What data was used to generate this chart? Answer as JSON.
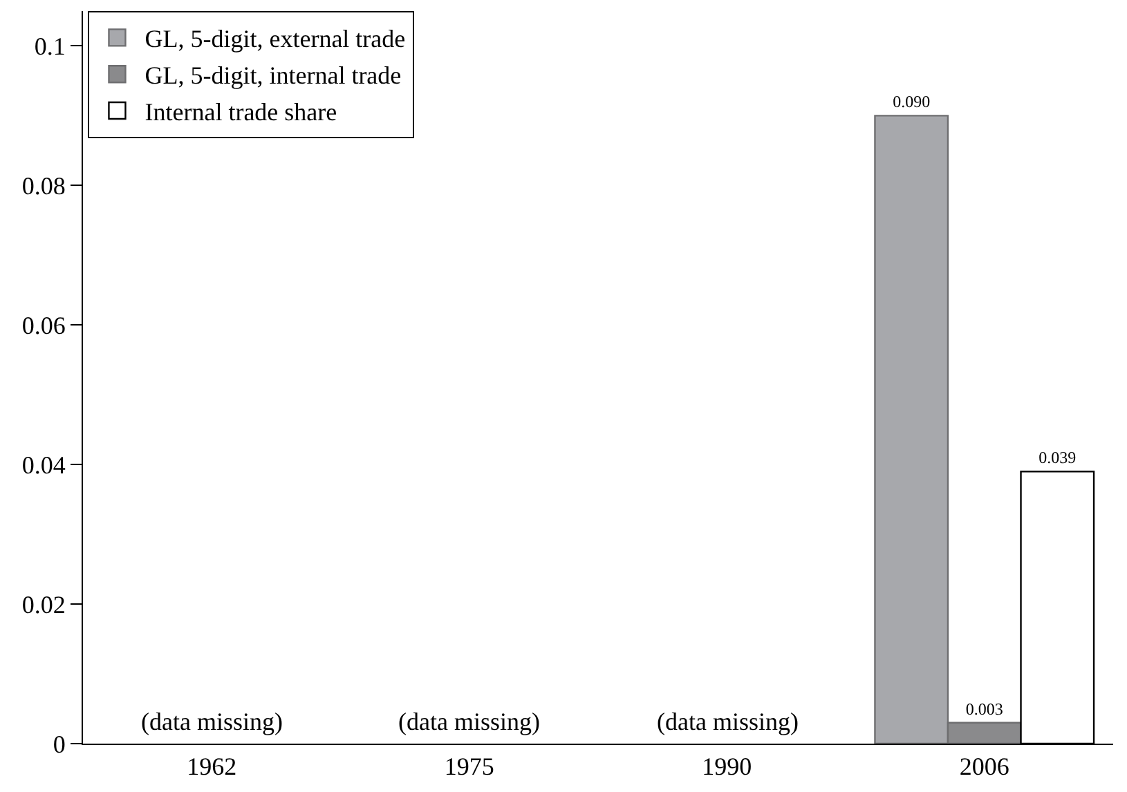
{
  "chart_data": {
    "type": "bar",
    "categories": [
      "1962",
      "1975",
      "1990",
      "2006"
    ],
    "series": [
      {
        "name": "GL, 5-digit, external trade",
        "color": "#a7a8ac",
        "values": [
          null,
          null,
          null,
          0.09
        ],
        "value_labels": [
          null,
          null,
          null,
          "0.090"
        ]
      },
      {
        "name": "GL, 5-digit, internal trade",
        "color": "#8a8a8c",
        "values": [
          null,
          null,
          null,
          0.003
        ],
        "value_labels": [
          null,
          null,
          null,
          "0.003"
        ]
      },
      {
        "name": "Internal trade share",
        "color": "#ffffff",
        "values": [
          null,
          null,
          null,
          0.039
        ],
        "value_labels": [
          null,
          null,
          null,
          "0.039"
        ]
      }
    ],
    "ylim": [
      0,
      0.105
    ],
    "yticks": [
      0,
      0.02,
      0.04,
      0.06,
      0.08,
      0.1
    ],
    "legend": "top left",
    "annotations": [
      "(data missing)",
      "(data missing)",
      "(data missing)"
    ]
  }
}
